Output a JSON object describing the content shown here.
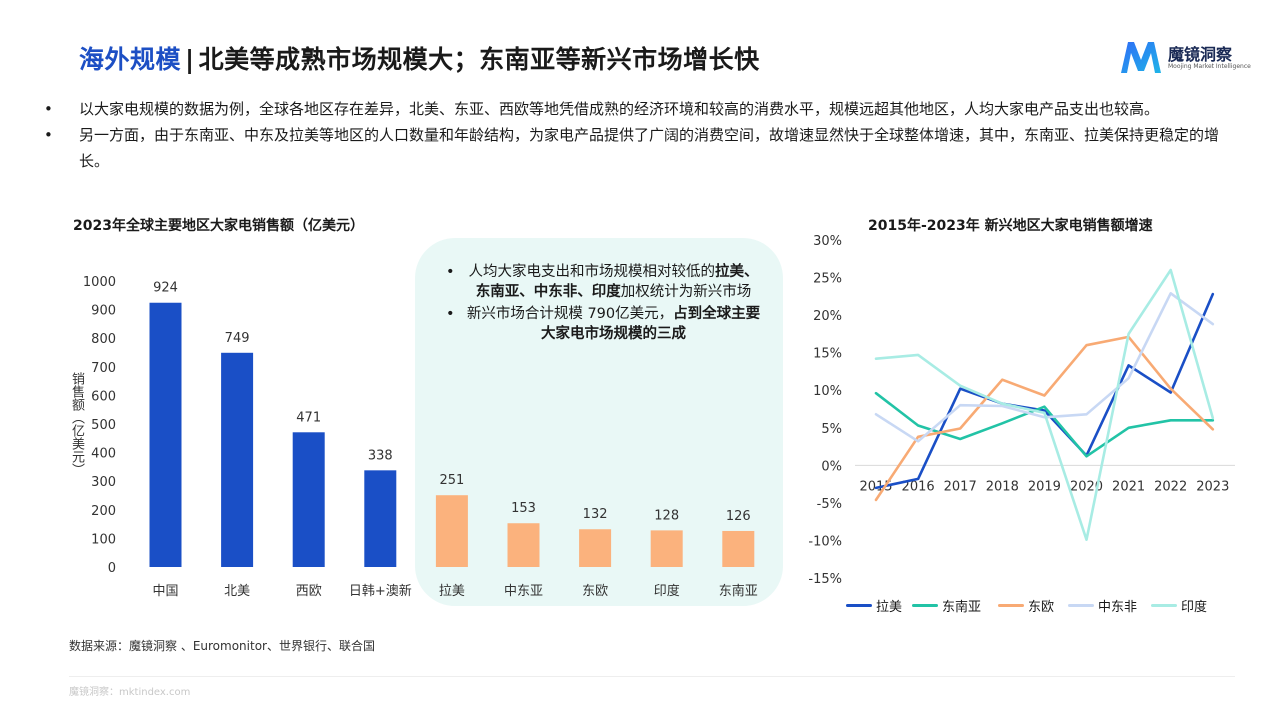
{
  "header": {
    "title_accent": "海外规模",
    "title_sep": "|",
    "title_rest": "北美等成熟市场规模大；东南亚等新兴市场增长快"
  },
  "logo": {
    "name": "魔镜洞察",
    "tagline": "Moojing Market Intelligence",
    "colors": [
      "#2f6df6",
      "#1fb5e8"
    ]
  },
  "bullets": [
    "以大家电规模的数据为例，全球各地区存在差异，北美、东亚、西欧等地凭借成熟的经济环境和较高的消费水平，规模远超其他地区，人均大家电产品支出也较高。",
    "另一方面，由于东南亚、中东及拉美等地区的人口数量和年龄结构，为家电产品提供了广阔的消费空间，故增速显然快于全球整体增速，其中，东南亚、拉美保持更稳定的增长。"
  ],
  "callout": {
    "item1_pre": "人均大家电支出和市场规模相对较低的",
    "item1_bold": "拉美、东南亚、中东非、印度",
    "item1_post": "加权统计为新兴市场",
    "item2_pre": "新兴市场合计规模 790亿美元，",
    "item2_bold": "占到全球主要大家电市场规模的三成"
  },
  "chart_data": [
    {
      "type": "bar",
      "title": "2023年全球主要地区大家电销售额（亿美元）",
      "ylabel": "销售额（亿美元）",
      "categories": [
        "中国",
        "北美",
        "西欧",
        "日韩+澳新",
        "拉美",
        "中东亚",
        "东欧",
        "印度",
        "东南亚"
      ],
      "values": [
        924,
        749,
        471,
        338,
        251,
        153,
        132,
        128,
        126
      ],
      "bar_colors": [
        "#1a4fc6",
        "#1a4fc6",
        "#1a4fc6",
        "#1a4fc6",
        "#fbb27d",
        "#fbb27d",
        "#fbb27d",
        "#fbb27d",
        "#fbb27d"
      ],
      "ylim": [
        0,
        1000
      ],
      "yticks": [
        0,
        100,
        200,
        300,
        400,
        500,
        600,
        700,
        800,
        900,
        1000
      ],
      "ytick_labels": [
        "0",
        "100",
        "200",
        "300",
        "400",
        "500",
        "600",
        "700",
        "800",
        "900",
        "1000"
      ],
      "data_labels": true,
      "grid": false
    },
    {
      "type": "line",
      "title": "2015年-2023年 新兴地区大家电销售额增速",
      "x": [
        2015,
        2016,
        2017,
        2018,
        2019,
        2020,
        2021,
        2022,
        2023
      ],
      "x_labels": [
        "2015",
        "2016",
        "2017",
        "2018",
        "2019",
        "2020",
        "2021",
        "2022",
        "2023"
      ],
      "ylim": [
        -15,
        30
      ],
      "yticks": [
        -15,
        -10,
        -5,
        0,
        5,
        10,
        15,
        20,
        25,
        30
      ],
      "ytick_labels": [
        "-15%",
        "-10%",
        "-5%",
        "0%",
        "5%",
        "10%",
        "15%",
        "20%",
        "25%",
        "30%"
      ],
      "legend_position": "bottom",
      "grid": false,
      "series": [
        {
          "name": "拉美",
          "color": "#1a4fc6",
          "values": [
            -3,
            -1.8,
            10.2,
            8.2,
            7.3,
            1.3,
            13.3,
            9.7,
            22.8
          ]
        },
        {
          "name": "东南亚",
          "color": "#22c3a6",
          "values": [
            9.6,
            5.3,
            3.5,
            5.6,
            7.8,
            1.2,
            5,
            6,
            6
          ]
        },
        {
          "name": "东欧",
          "color": "#f8aa74",
          "values": [
            -4.6,
            3.8,
            4.9,
            11.4,
            9.3,
            16,
            17.1,
            10.2,
            4.8
          ]
        },
        {
          "name": "中东非",
          "color": "#c8d8f4",
          "values": [
            6.8,
            3.2,
            8,
            7.9,
            6.4,
            6.8,
            11.6,
            22.9,
            18.8
          ]
        },
        {
          "name": "印度",
          "color": "#a8ece4",
          "values": [
            14.2,
            14.7,
            10.6,
            8.2,
            7,
            -9.9,
            17.5,
            26,
            6.3
          ]
        }
      ]
    }
  ],
  "source": "数据来源：魔镜洞察 、Euromonitor、世界银行、联合国",
  "footer": "魔镜洞察：mktindex.com"
}
